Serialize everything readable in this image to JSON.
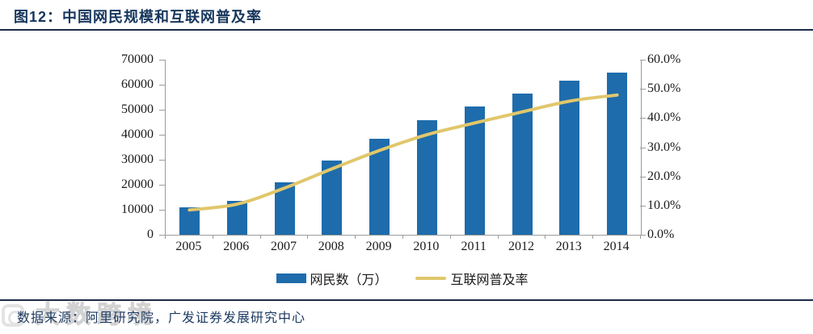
{
  "header": {
    "title": "图12：中国网民规模和互联网普及率"
  },
  "chart_data": {
    "type": "bar+line",
    "categories": [
      "2005",
      "2006",
      "2007",
      "2008",
      "2009",
      "2010",
      "2011",
      "2012",
      "2013",
      "2014"
    ],
    "series": [
      {
        "name": "网民数（万）",
        "type": "bar",
        "axis": "left",
        "color": "#1E6CAB",
        "values": [
          11100,
          13700,
          21000,
          29800,
          38400,
          45730,
          51310,
          56400,
          61758,
          64875
        ]
      },
      {
        "name": "互联网普及率",
        "type": "line",
        "axis": "right",
        "color": "#E1C76C",
        "values": [
          8.5,
          10.5,
          16.0,
          22.6,
          28.9,
          34.3,
          38.3,
          42.1,
          45.8,
          47.9
        ]
      }
    ],
    "left_axis": {
      "min": 0,
      "max": 70000,
      "step": 10000,
      "tick_labels": [
        "0",
        "10000",
        "20000",
        "30000",
        "40000",
        "50000",
        "60000",
        "70000"
      ]
    },
    "right_axis": {
      "min": 0,
      "max": 60,
      "step": 10,
      "tick_labels": [
        "0.0%",
        "10.0%",
        "20.0%",
        "30.0%",
        "40.0%",
        "50.0%",
        "60.0%"
      ]
    },
    "grid": false,
    "legend_position": "bottom"
  },
  "footer": {
    "source": "数据来源：阿里研究院，广发证券发展研究中心",
    "watermark": "大数跨境"
  },
  "colors": {
    "title": "#16365C",
    "rule": "#1B2A45",
    "axis": "#9C9C9C",
    "tick_text": "#1A1A1A",
    "bar": "#1E6CAB",
    "line": "#E1C76C",
    "source_text": "#1F3B63",
    "watermark": "#E3E3E3"
  }
}
